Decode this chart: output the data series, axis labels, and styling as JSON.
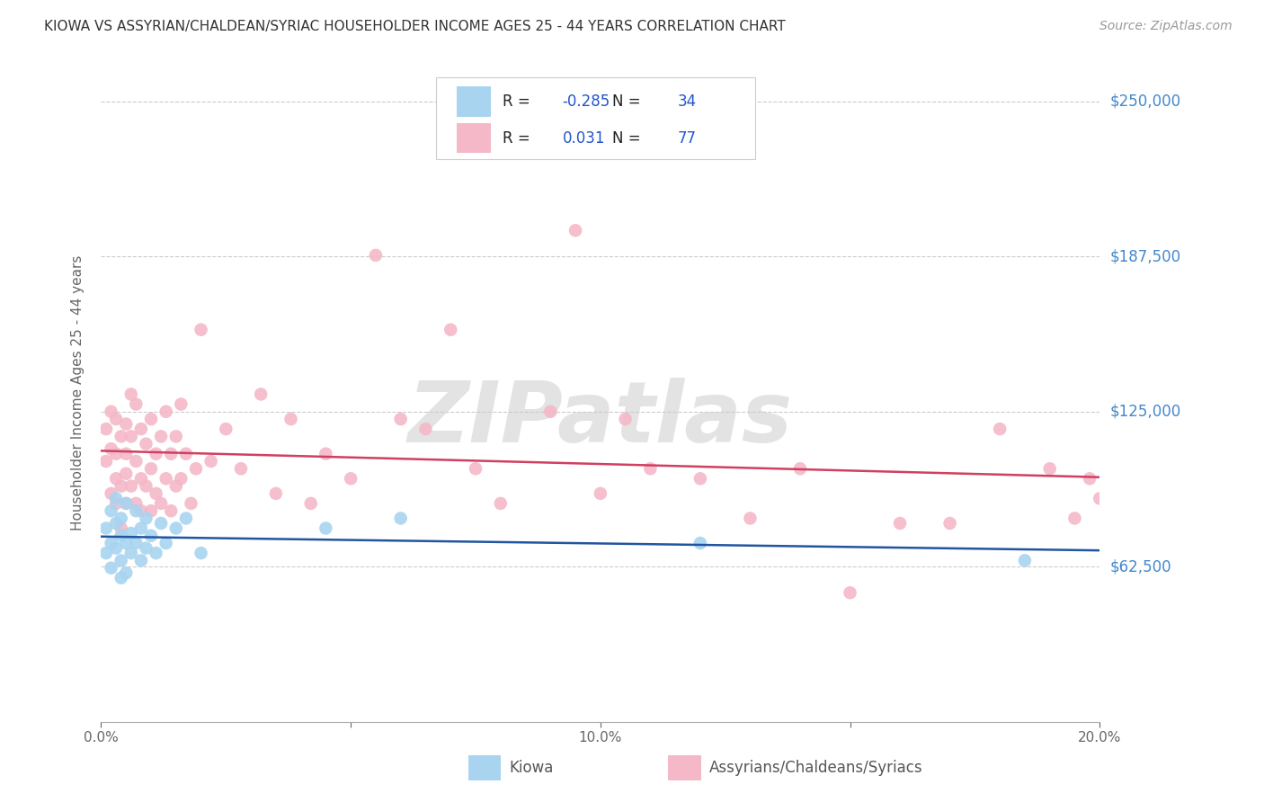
{
  "title": "KIOWA VS ASSYRIAN/CHALDEAN/SYRIAC HOUSEHOLDER INCOME AGES 25 - 44 YEARS CORRELATION CHART",
  "source": "Source: ZipAtlas.com",
  "ylabel": "Householder Income Ages 25 - 44 years",
  "xlim": [
    0.0,
    0.2
  ],
  "ylim": [
    0,
    265000
  ],
  "yticks": [
    0,
    62500,
    125000,
    187500,
    250000
  ],
  "ytick_labels": [
    "",
    "$62,500",
    "$125,000",
    "$187,500",
    "$250,000"
  ],
  "xticks": [
    0.0,
    0.05,
    0.1,
    0.15,
    0.2
  ],
  "xtick_labels": [
    "0.0%",
    "",
    "10.0%",
    "",
    "20.0%"
  ],
  "kiowa_color": "#a8d4f0",
  "assyrian_color": "#f4b8c8",
  "kiowa_line_color": "#2255a0",
  "assyrian_line_color": "#d04060",
  "R_kiowa": -0.285,
  "N_kiowa": 34,
  "R_assyrian": 0.031,
  "N_assyrian": 77,
  "legend_labels": [
    "Kiowa",
    "Assyrians/Chaldeans/Syriacs"
  ],
  "background_color": "#ffffff",
  "grid_color": "#cccccc",
  "watermark": "ZIPatlas",
  "kiowa_x": [
    0.001,
    0.001,
    0.002,
    0.002,
    0.002,
    0.003,
    0.003,
    0.003,
    0.004,
    0.004,
    0.004,
    0.004,
    0.005,
    0.005,
    0.005,
    0.006,
    0.006,
    0.007,
    0.007,
    0.008,
    0.008,
    0.009,
    0.009,
    0.01,
    0.011,
    0.012,
    0.013,
    0.015,
    0.017,
    0.02,
    0.045,
    0.06,
    0.12,
    0.185
  ],
  "kiowa_y": [
    78000,
    68000,
    85000,
    72000,
    62000,
    80000,
    70000,
    90000,
    75000,
    65000,
    82000,
    58000,
    88000,
    72000,
    60000,
    76000,
    68000,
    85000,
    72000,
    78000,
    65000,
    82000,
    70000,
    75000,
    68000,
    80000,
    72000,
    78000,
    82000,
    68000,
    78000,
    82000,
    72000,
    65000
  ],
  "assyrian_x": [
    0.001,
    0.001,
    0.002,
    0.002,
    0.002,
    0.003,
    0.003,
    0.003,
    0.003,
    0.004,
    0.004,
    0.004,
    0.005,
    0.005,
    0.005,
    0.005,
    0.006,
    0.006,
    0.006,
    0.007,
    0.007,
    0.007,
    0.008,
    0.008,
    0.008,
    0.009,
    0.009,
    0.01,
    0.01,
    0.01,
    0.011,
    0.011,
    0.012,
    0.012,
    0.013,
    0.013,
    0.014,
    0.014,
    0.015,
    0.015,
    0.016,
    0.016,
    0.017,
    0.018,
    0.019,
    0.02,
    0.022,
    0.025,
    0.028,
    0.032,
    0.035,
    0.038,
    0.042,
    0.045,
    0.05,
    0.055,
    0.06,
    0.065,
    0.07,
    0.075,
    0.08,
    0.09,
    0.095,
    0.1,
    0.105,
    0.11,
    0.12,
    0.13,
    0.14,
    0.15,
    0.16,
    0.17,
    0.18,
    0.19,
    0.195,
    0.198,
    0.2
  ],
  "assyrian_y": [
    105000,
    118000,
    92000,
    110000,
    125000,
    88000,
    108000,
    122000,
    98000,
    115000,
    95000,
    78000,
    100000,
    120000,
    108000,
    88000,
    132000,
    115000,
    95000,
    128000,
    105000,
    88000,
    118000,
    98000,
    85000,
    112000,
    95000,
    122000,
    102000,
    85000,
    108000,
    92000,
    115000,
    88000,
    125000,
    98000,
    108000,
    85000,
    115000,
    95000,
    128000,
    98000,
    108000,
    88000,
    102000,
    158000,
    105000,
    118000,
    102000,
    132000,
    92000,
    122000,
    88000,
    108000,
    98000,
    188000,
    122000,
    118000,
    158000,
    102000,
    88000,
    125000,
    198000,
    92000,
    122000,
    102000,
    98000,
    82000,
    102000,
    52000,
    80000,
    80000,
    118000,
    102000,
    82000,
    98000,
    90000
  ]
}
